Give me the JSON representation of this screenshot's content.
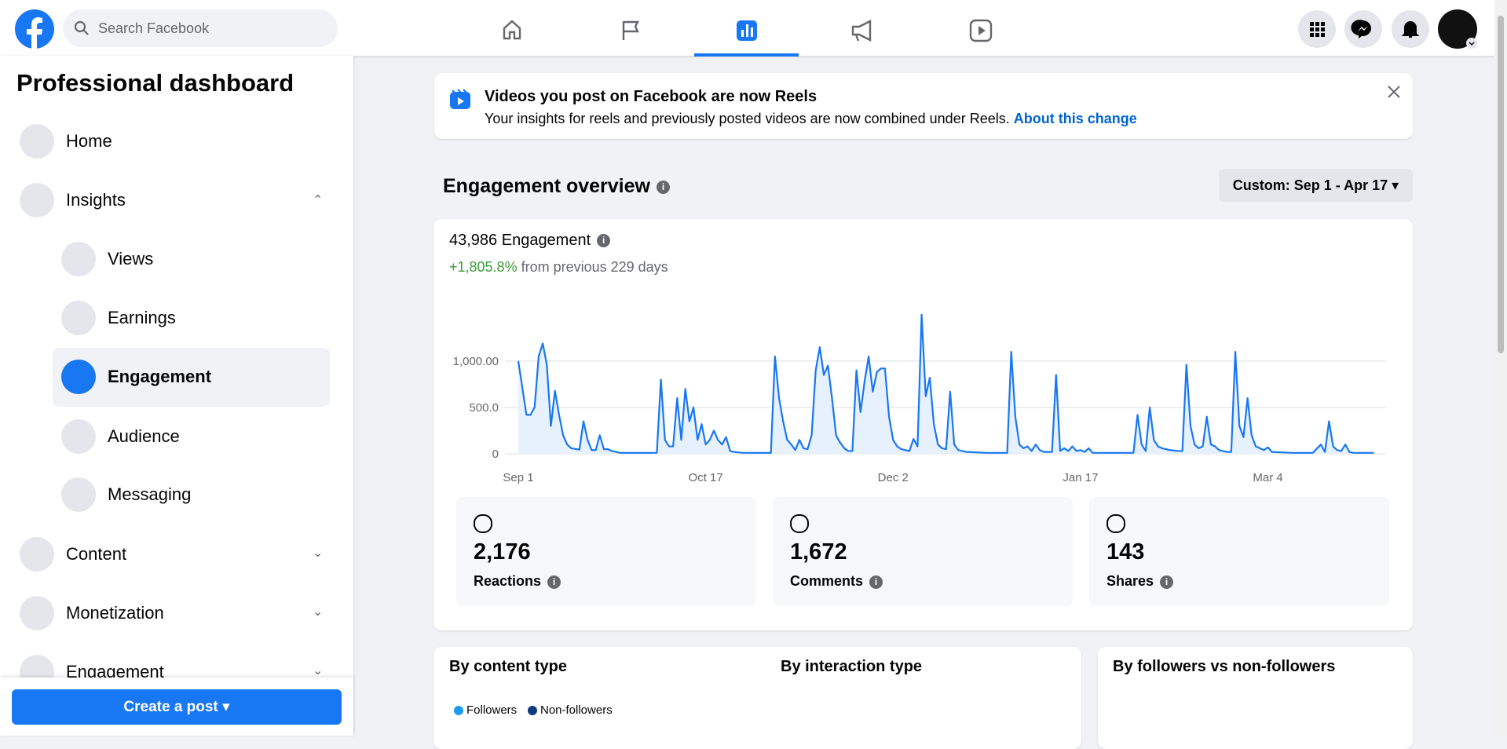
{
  "header": {
    "search_placeholder": "Search Facebook"
  },
  "sidebar": {
    "title": "Professional dashboard",
    "items": [
      "Home",
      "Insights",
      "Views",
      "Earnings",
      "Engagement",
      "Audience",
      "Messaging",
      "Content",
      "Monetization",
      "Engagement"
    ],
    "create_button": "Create a post"
  },
  "banner": {
    "title": "Videos you post on Facebook are now Reels",
    "text": "Your insights for reels and previously posted videos are now combined under Reels.",
    "link": "About this change"
  },
  "overview": {
    "title": "Engagement overview",
    "date_range": "Custom: Sep 1 - Apr 17",
    "total": "43,986 Engagement",
    "change": "+1,805.8%",
    "change_text": "from previous 229 days",
    "stats": [
      {
        "value": "2,176",
        "label": "Reactions"
      },
      {
        "value": "1,672",
        "label": "Comments"
      },
      {
        "value": "143",
        "label": "Shares"
      }
    ]
  },
  "breakdowns": {
    "titles": [
      "By content type",
      "By interaction type",
      "By followers vs non-followers"
    ],
    "legend": [
      "Followers",
      "Non-followers"
    ]
  },
  "chart_data": {
    "type": "line",
    "color": "#1877f2",
    "area_color": "#e7f0fd",
    "grid": true,
    "xlim": [
      0,
      213
    ],
    "ylim": [
      0,
      1600
    ],
    "xticks": [
      {
        "value": 0,
        "label": "Sep 1"
      },
      {
        "value": 46,
        "label": "Oct 17"
      },
      {
        "value": 92,
        "label": "Dec 2"
      },
      {
        "value": 138,
        "label": "Jan 17"
      },
      {
        "value": 184,
        "label": "Mar 4"
      }
    ],
    "yticks": [
      0,
      {
        "value": 500,
        "label": "500.0"
      },
      {
        "value": 1000,
        "label": "1,000.00"
      }
    ],
    "x": [
      0,
      2,
      3,
      4,
      5,
      6,
      7,
      8,
      9,
      10,
      11,
      12,
      13,
      15,
      16,
      17,
      18,
      19,
      20,
      21,
      22,
      23,
      25,
      34,
      35,
      36,
      37,
      38,
      39,
      40,
      41,
      42,
      43,
      44,
      45,
      46,
      47,
      48,
      49,
      50,
      51,
      52,
      53,
      55,
      62,
      63,
      64,
      65,
      66,
      67,
      68,
      69,
      70,
      71,
      72,
      73,
      74,
      75,
      76,
      77,
      78,
      79,
      80,
      81,
      82,
      83,
      84,
      85,
      86,
      87,
      88,
      89,
      90,
      91,
      92,
      93,
      94,
      95,
      96,
      97,
      98,
      99,
      100,
      101,
      102,
      103,
      104,
      105,
      106,
      107,
      108,
      110,
      115,
      120,
      121,
      122,
      123,
      124,
      125,
      126,
      127,
      128,
      129,
      131,
      132,
      133,
      134,
      135,
      136,
      137,
      138,
      139,
      140,
      141,
      151,
      152,
      153,
      154,
      155,
      156,
      157,
      158,
      160,
      162,
      163,
      164,
      165,
      166,
      167,
      168,
      169,
      170,
      171,
      172,
      174,
      175,
      176,
      177,
      178,
      179,
      180,
      181,
      182,
      183,
      184,
      185,
      190,
      195,
      197,
      198,
      199,
      200,
      201,
      202,
      203,
      204,
      205,
      210
    ],
    "values": [
      1000,
      420,
      420,
      500,
      1050,
      1190,
      960,
      300,
      680,
      420,
      200,
      100,
      60,
      45,
      350,
      150,
      40,
      40,
      200,
      50,
      50,
      30,
      10,
      10,
      800,
      150,
      80,
      80,
      600,
      150,
      700,
      350,
      500,
      150,
      320,
      100,
      150,
      250,
      150,
      100,
      180,
      30,
      20,
      10,
      10,
      1050,
      600,
      350,
      150,
      100,
      40,
      150,
      60,
      50,
      200,
      900,
      1150,
      850,
      950,
      600,
      200,
      120,
      60,
      30,
      30,
      900,
      450,
      780,
      1050,
      670,
      880,
      920,
      920,
      400,
      150,
      80,
      50,
      40,
      30,
      160,
      80,
      1500,
      620,
      820,
      320,
      100,
      60,
      50,
      670,
      100,
      40,
      20,
      10,
      10,
      1100,
      400,
      100,
      60,
      80,
      30,
      100,
      40,
      20,
      20,
      850,
      30,
      60,
      30,
      80,
      30,
      40,
      20,
      60,
      10,
      10,
      420,
      100,
      30,
      500,
      150,
      80,
      60,
      40,
      30,
      30,
      960,
      300,
      100,
      60,
      80,
      400,
      100,
      80,
      40,
      20,
      20,
      1100,
      300,
      180,
      600,
      200,
      80,
      60,
      40,
      70,
      20,
      10,
      10,
      100,
      20,
      350,
      80,
      40,
      30,
      100,
      20,
      10,
      10
    ]
  }
}
